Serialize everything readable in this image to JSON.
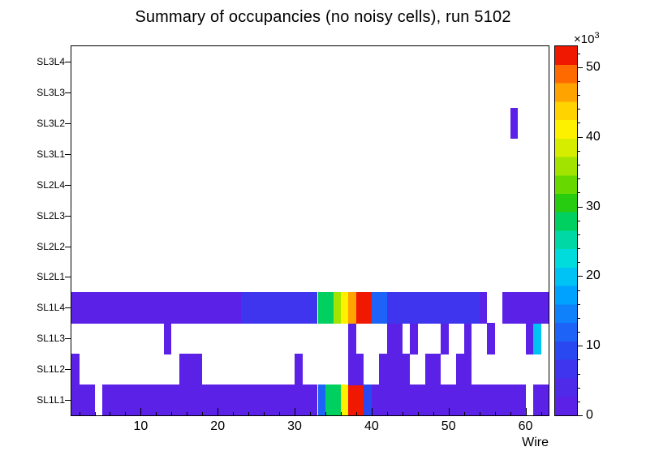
{
  "chart_data": {
    "type": "heatmap",
    "title": "Summary of occupancies (no noisy cells), run 5102",
    "xlabel": "Wire",
    "x_range": [
      1,
      63
    ],
    "x_major_ticks": [
      10,
      20,
      30,
      40,
      50,
      60
    ],
    "x_minor_tick_step": 2,
    "rows_bottom_to_top": [
      "SL1L1",
      "SL1L2",
      "SL1L3",
      "SL1L4",
      "SL2L1",
      "SL2L2",
      "SL2L3",
      "SL2L4",
      "SL3L1",
      "SL3L2",
      "SL3L3",
      "SL3L4"
    ],
    "value_units": "counts x 1000",
    "colorbar": {
      "scale_label": "×10",
      "scale_exponent": "3",
      "ticks": [
        0,
        10,
        20,
        30,
        40,
        50
      ],
      "minor_tick_step": 2,
      "max": 53,
      "palette": [
        "#5c21e6",
        "#4f2ae8",
        "#3f35ee",
        "#2a48f2",
        "#1d63f7",
        "#0f82fb",
        "#00a2ff",
        "#00c3f5",
        "#00dbdb",
        "#00d9a5",
        "#00d060",
        "#27cc10",
        "#67d900",
        "#a2e300",
        "#d6ed00",
        "#fdf100",
        "#ffd300",
        "#ffa300",
        "#ff6a00",
        "#f01800"
      ]
    },
    "cells": {
      "SL1L1": [
        [
          1,
          4,
          2
        ],
        [
          5,
          33,
          2
        ],
        [
          33,
          34,
          12
        ],
        [
          34,
          36,
          28
        ],
        [
          36,
          37,
          41
        ],
        [
          37,
          39,
          52
        ],
        [
          39,
          40,
          10
        ],
        [
          40,
          60,
          2
        ],
        [
          61,
          63,
          2
        ]
      ],
      "SL1L2": [
        [
          1,
          2,
          2
        ],
        [
          15,
          18,
          2
        ],
        [
          30,
          31,
          2
        ],
        [
          37,
          39,
          2
        ],
        [
          41,
          45,
          2
        ],
        [
          47,
          49,
          2
        ],
        [
          51,
          53,
          2
        ]
      ],
      "SL1L3": [
        [
          13,
          14,
          2
        ],
        [
          37,
          38,
          2
        ],
        [
          42,
          44,
          2
        ],
        [
          45,
          46,
          2
        ],
        [
          49,
          50,
          2
        ],
        [
          52,
          53,
          2
        ],
        [
          55,
          56,
          2
        ],
        [
          60,
          61,
          2
        ],
        [
          61,
          62,
          20
        ]
      ],
      "SL1L4": [
        [
          1,
          23,
          2
        ],
        [
          23,
          33,
          7
        ],
        [
          33,
          35,
          28
        ],
        [
          35,
          36,
          36
        ],
        [
          36,
          37,
          41
        ],
        [
          37,
          38,
          46
        ],
        [
          38,
          40,
          52
        ],
        [
          40,
          42,
          12
        ],
        [
          42,
          54,
          6
        ],
        [
          54,
          55,
          2
        ],
        [
          57,
          63,
          2
        ]
      ],
      "SL2L1": [],
      "SL2L2": [],
      "SL2L3": [],
      "SL2L4": [],
      "SL3L1": [],
      "SL3L2": [
        [
          58,
          59,
          2
        ]
      ],
      "SL3L3": [],
      "SL3L4": []
    }
  }
}
